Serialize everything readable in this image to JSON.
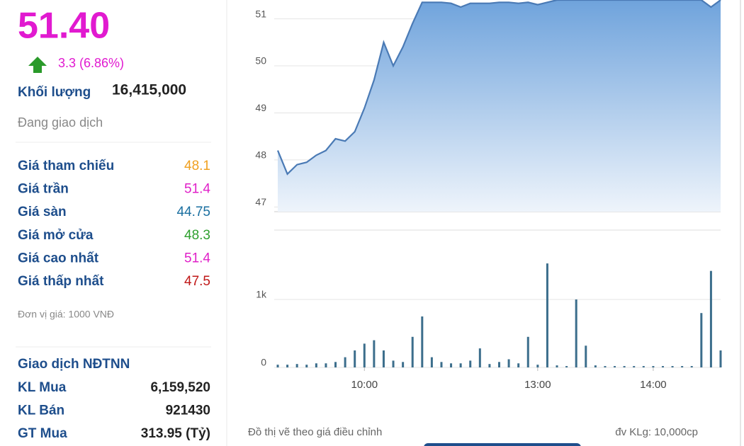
{
  "quote": {
    "price": "51.40",
    "change": "3.3 (6.86%)",
    "volume_label": "Khối lượng",
    "volume": "16,415,000",
    "status": "Đang giao dịch"
  },
  "price_table": {
    "rows": [
      {
        "label": "Giá tham chiếu",
        "value": "48.1",
        "color": "#f0a020"
      },
      {
        "label": "Giá trần",
        "value": "51.4",
        "color": "#e020c8"
      },
      {
        "label": "Giá sàn",
        "value": "44.75",
        "color": "#1a6fa0"
      },
      {
        "label": "Giá mở cửa",
        "value": "48.3",
        "color": "#2ea02e"
      },
      {
        "label": "Giá cao nhất",
        "value": "51.4",
        "color": "#e020c8"
      },
      {
        "label": "Giá thấp nhất",
        "value": "47.5",
        "color": "#c01818"
      }
    ]
  },
  "unit_note": "Đơn vị giá: 1000 VNĐ",
  "foreign": {
    "title": "Giao dịch NĐTNN",
    "rows": [
      {
        "label": "KL Mua",
        "value": "6,159,520"
      },
      {
        "label": "KL Bán",
        "value": "921430"
      },
      {
        "label": "GT Mua",
        "value": "313.95 (Tỷ)"
      }
    ]
  },
  "chart_data": [
    {
      "type": "area",
      "color": "#4a7ab5",
      "values": [
        48.2,
        47.7,
        47.9,
        47.95,
        48.1,
        48.2,
        48.45,
        48.4,
        48.6,
        49.1,
        49.7,
        50.5,
        50.0,
        50.4,
        50.9,
        51.35,
        51.35,
        51.35,
        51.33,
        51.25,
        51.33,
        51.33,
        51.33,
        51.35,
        51.35,
        51.33,
        51.35,
        51.3,
        51.35,
        51.4,
        51.4,
        51.4,
        51.4,
        51.4,
        51.4,
        51.4,
        51.4,
        51.4,
        51.4,
        51.4,
        51.4,
        51.4,
        51.4,
        51.4,
        51.4,
        51.25,
        51.4
      ],
      "ylim": [
        46.9,
        51.4
      ],
      "yticks": [
        47,
        48,
        49,
        50,
        51
      ],
      "grid": true
    },
    {
      "type": "bar",
      "color": "#3c6e8c",
      "categories": [
        null,
        null,
        null,
        null,
        null,
        null,
        null,
        null,
        null,
        "10:00",
        null,
        null,
        null,
        null,
        null,
        null,
        null,
        null,
        null,
        null,
        null,
        null,
        null,
        null,
        null,
        null,
        null,
        "13:00",
        null,
        null,
        null,
        null,
        null,
        null,
        null,
        null,
        null,
        null,
        null,
        "14:00",
        null,
        null,
        null,
        null,
        null,
        null,
        null
      ],
      "values": [
        40,
        40,
        50,
        40,
        60,
        60,
        80,
        150,
        250,
        350,
        400,
        250,
        100,
        80,
        450,
        750,
        150,
        80,
        60,
        60,
        100,
        280,
        50,
        80,
        120,
        60,
        450,
        40,
        1530,
        30,
        20,
        1000,
        320,
        30,
        20,
        20,
        20,
        20,
        20,
        20,
        20,
        20,
        20,
        20,
        800,
        1420,
        250
      ],
      "ylim": [
        0,
        2000
      ],
      "yticks": [
        0,
        {
          "value": 1000,
          "label": "1k"
        }
      ],
      "grid": true
    }
  ],
  "footer": {
    "note": "Đồ thị vẽ theo giá điều chỉnh",
    "unit": "đv KLg: 10,000cp"
  }
}
